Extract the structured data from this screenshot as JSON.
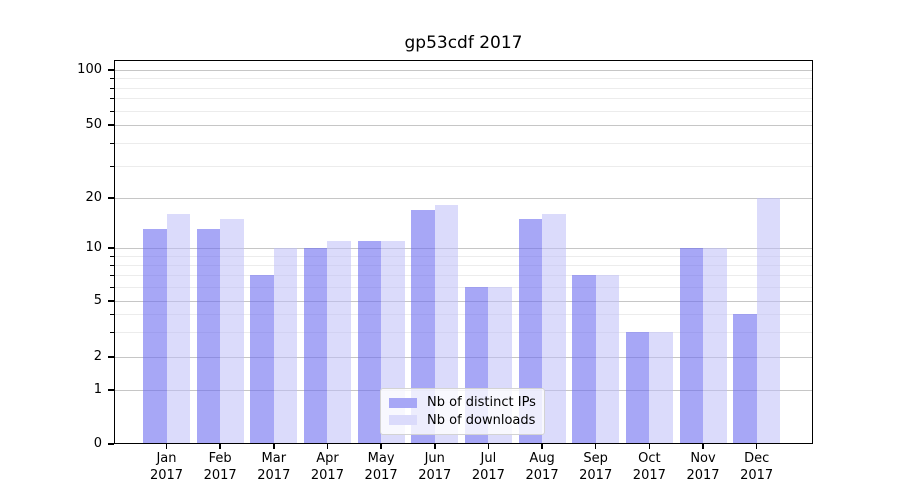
{
  "chart_data": {
    "type": "bar",
    "title": "gp53cdf 2017",
    "categories": [
      "Jan",
      "Feb",
      "Mar",
      "Apr",
      "May",
      "Jun",
      "Jul",
      "Aug",
      "Sep",
      "Oct",
      "Nov",
      "Dec"
    ],
    "category_year": "2017",
    "series": [
      {
        "name": "Nb of distinct IPs",
        "color": "rgba(109,109,240,0.60)",
        "legend_color": "#a7a7f6",
        "values": [
          13,
          13,
          7,
          10,
          11,
          17,
          6,
          15,
          7,
          3,
          10,
          4
        ]
      },
      {
        "name": "Nb of downloads",
        "color": "rgba(190,190,248,0.55)",
        "legend_color": "#dbdbfb",
        "values": [
          16,
          15,
          10,
          11,
          11,
          18,
          6,
          16,
          7,
          3,
          10,
          20
        ]
      }
    ],
    "xlabel": "",
    "ylabel": "",
    "yscale": "log-like",
    "ylim": [
      0,
      100
    ],
    "yticks": [
      0,
      1,
      2,
      5,
      10,
      20,
      50,
      100
    ],
    "minor_yticks": [
      3,
      4,
      6,
      7,
      8,
      9,
      30,
      40,
      60,
      70,
      80,
      90
    ],
    "grid": true,
    "legend_position": "lower center"
  },
  "colors": {
    "major_grid": "#c6c6c6",
    "minor_grid": "#ececec",
    "axis": "#000000"
  }
}
